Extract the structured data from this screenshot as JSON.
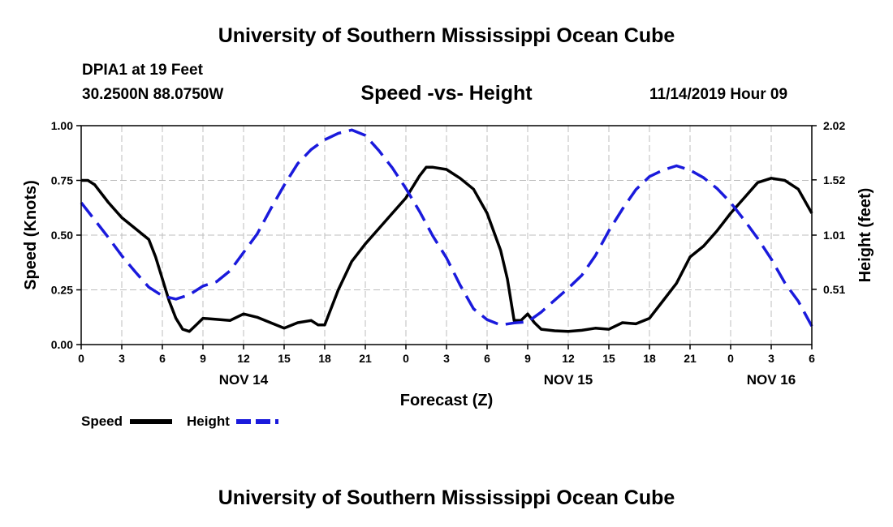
{
  "header": {
    "title": "University of Southern Mississippi Ocean Cube",
    "station": "DPIA1 at 19 Feet",
    "coords": "30.2500N 88.0750W",
    "subtitle": "Speed -vs- Height",
    "datetime": "11/14/2019 Hour 09"
  },
  "footer": {
    "title": "University of Southern Mississippi Ocean Cube"
  },
  "chart_data": {
    "type": "line",
    "xlabel": "Forecast (Z)",
    "ylabel": "Speed (Knots)",
    "y2label": "Height (feet)",
    "xlim": [
      0,
      54
    ],
    "ylim": [
      0,
      1.0
    ],
    "y2lim": [
      0.0,
      2.02
    ],
    "x_ticks": [
      0,
      3,
      6,
      9,
      12,
      15,
      18,
      21,
      24,
      27,
      30,
      33,
      36,
      39,
      42,
      45,
      48,
      51,
      54
    ],
    "x_tick_labels": [
      "0",
      "3",
      "6",
      "9",
      "12",
      "15",
      "18",
      "21",
      "0",
      "3",
      "6",
      "9",
      "12",
      "15",
      "18",
      "21",
      "0",
      "3",
      "6"
    ],
    "y_ticks": [
      0,
      0.25,
      0.5,
      0.75,
      1.0
    ],
    "y_tick_labels": [
      "0.00",
      "0.25",
      "0.50",
      "0.75",
      "1.00"
    ],
    "y2_ticks": [
      0.51,
      1.01,
      1.52,
      2.02
    ],
    "y2_tick_labels": [
      "0.51",
      "1.01",
      "1.52",
      "2.02"
    ],
    "day_labels": [
      {
        "x": 12,
        "label": "NOV 14"
      },
      {
        "x": 36,
        "label": "NOV 15"
      },
      {
        "x": 51,
        "label": "NOV 16"
      }
    ],
    "grid": true,
    "legend": {
      "position": "bottom-left",
      "speed_label": "Speed",
      "height_label": "Height"
    },
    "series": [
      {
        "name": "Speed",
        "axis": "left",
        "color": "#000000",
        "dash": "solid",
        "x": [
          0,
          0.5,
          1,
          2,
          3,
          4,
          5,
          5.5,
          6,
          6.5,
          7,
          7.5,
          8,
          8.5,
          9,
          10,
          11,
          12,
          13,
          14,
          15,
          16,
          17,
          17.5,
          18,
          19,
          20,
          21,
          22,
          23,
          24,
          25,
          25.5,
          26,
          27,
          28,
          29,
          30,
          31,
          31.5,
          32,
          32.5,
          33,
          33.5,
          34,
          35,
          36,
          37,
          38,
          39,
          40,
          41,
          42,
          43,
          44,
          45,
          46,
          47,
          48,
          49,
          50,
          51,
          52,
          53,
          54
        ],
        "y": [
          0.75,
          0.75,
          0.73,
          0.65,
          0.58,
          0.53,
          0.48,
          0.4,
          0.3,
          0.2,
          0.12,
          0.07,
          0.06,
          0.09,
          0.12,
          0.115,
          0.11,
          0.14,
          0.125,
          0.1,
          0.075,
          0.1,
          0.11,
          0.09,
          0.09,
          0.25,
          0.38,
          0.46,
          0.53,
          0.6,
          0.67,
          0.77,
          0.81,
          0.81,
          0.8,
          0.76,
          0.71,
          0.6,
          0.43,
          0.3,
          0.11,
          0.11,
          0.14,
          0.1,
          0.07,
          0.063,
          0.06,
          0.065,
          0.075,
          0.07,
          0.1,
          0.095,
          0.12,
          0.2,
          0.28,
          0.4,
          0.45,
          0.52,
          0.6,
          0.67,
          0.74,
          0.76,
          0.75,
          0.71,
          0.6
        ]
      },
      {
        "name": "Height",
        "axis": "right",
        "color": "#1a1adc",
        "dash": "dashed",
        "x": [
          0,
          1,
          2,
          3,
          4,
          5,
          6,
          7,
          8,
          9,
          10,
          11,
          12,
          13,
          14,
          15,
          16,
          17,
          18,
          19,
          20,
          21,
          22,
          23,
          24,
          25,
          26,
          27,
          28,
          29,
          30,
          31,
          32,
          33,
          34,
          35,
          36,
          37,
          38,
          39,
          40,
          41,
          42,
          43,
          44,
          45,
          46,
          47,
          48,
          49,
          50,
          51,
          52,
          53,
          54
        ],
        "y": [
          1.31,
          1.15,
          0.99,
          0.82,
          0.67,
          0.53,
          0.45,
          0.42,
          0.46,
          0.54,
          0.58,
          0.68,
          0.85,
          1.02,
          1.25,
          1.47,
          1.67,
          1.8,
          1.89,
          1.95,
          1.98,
          1.93,
          1.79,
          1.63,
          1.44,
          1.23,
          1.0,
          0.8,
          0.55,
          0.33,
          0.23,
          0.18,
          0.2,
          0.21,
          0.3,
          0.41,
          0.52,
          0.64,
          0.82,
          1.05,
          1.25,
          1.43,
          1.55,
          1.61,
          1.65,
          1.61,
          1.54,
          1.44,
          1.31,
          1.15,
          0.98,
          0.79,
          0.57,
          0.4,
          0.17
        ]
      }
    ]
  }
}
